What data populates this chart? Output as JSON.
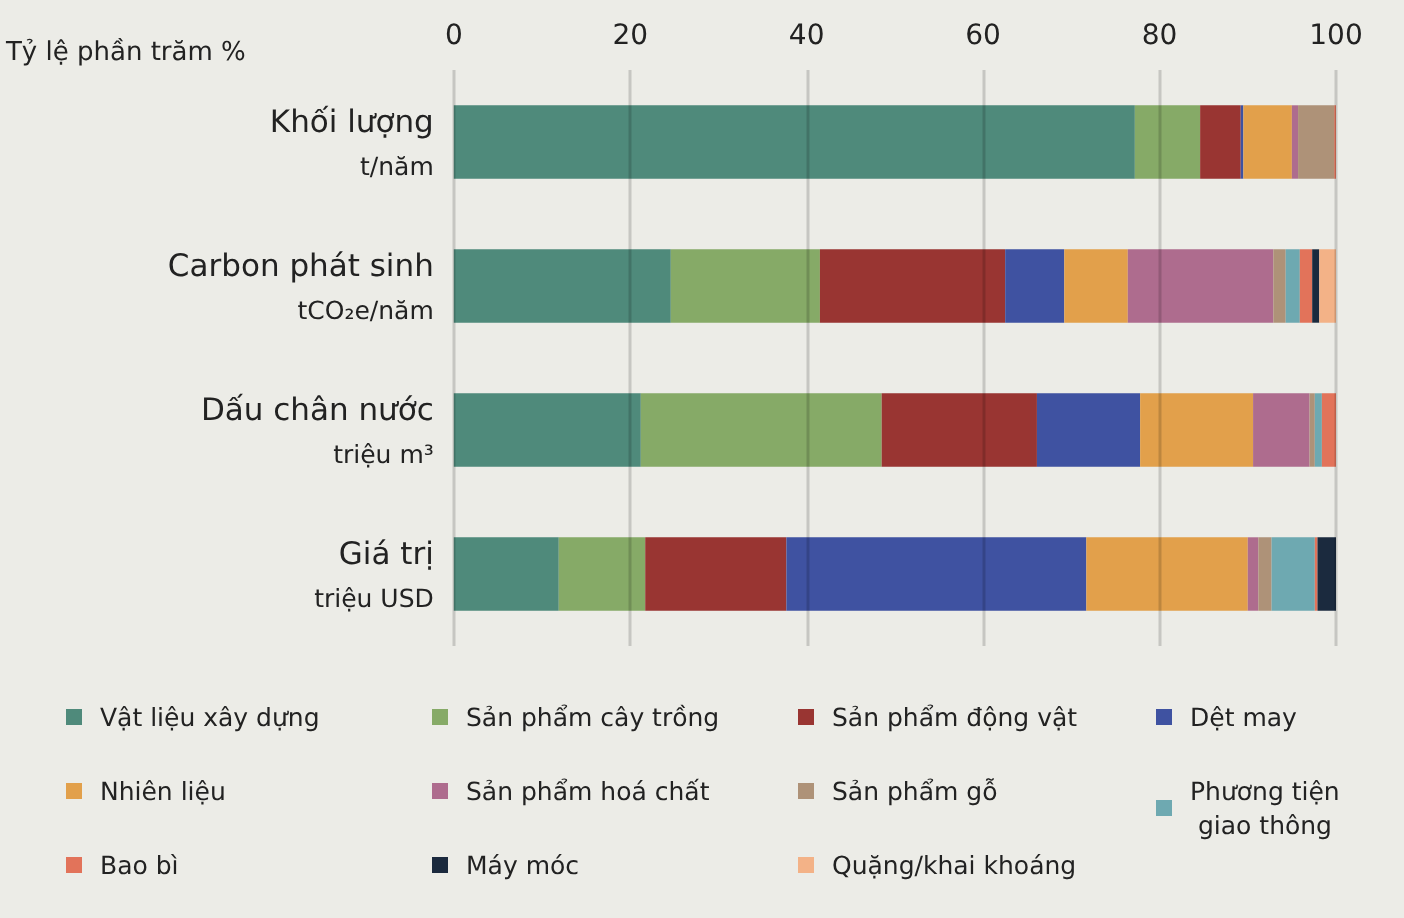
{
  "chart_data": {
    "type": "bar",
    "orientation": "horizontal",
    "stacked": true,
    "xlabel": "Tỷ lệ phần trăm %",
    "categories": [
      "Khối lượng\nt/năm",
      "Carbon phát sinh\ntCO₂e/năm",
      "Dấu chân nước\ntriệu m³",
      "Giá trị\ntriệu USD"
    ],
    "series": [
      {
        "name": "Vật liệu xây dựng",
        "color": "#4f8a7b",
        "values": [
          77.2,
          24.6,
          21.2,
          11.9
        ]
      },
      {
        "name": "Sản phẩm cây trồng",
        "color": "#86aa67",
        "values": [
          7.4,
          16.9,
          27.3,
          9.8
        ]
      },
      {
        "name": "Sản phẩm động vật",
        "color": "#993532",
        "values": [
          4.6,
          21.0,
          17.6,
          16.0
        ]
      },
      {
        "name": "Dệt may",
        "color": "#3f52a1",
        "values": [
          0.3,
          6.7,
          11.7,
          34.0
        ]
      },
      {
        "name": "Nhiên liệu",
        "color": "#e2a04b",
        "values": [
          5.5,
          7.2,
          12.8,
          18.3
        ]
      },
      {
        "name": "Sản phẩm hoá chất",
        "color": "#ae6c8e",
        "values": [
          0.7,
          16.5,
          6.4,
          1.2
        ]
      },
      {
        "name": "Sản phẩm gỗ",
        "color": "#ae9278",
        "values": [
          4.1,
          1.4,
          0.6,
          1.5
        ]
      },
      {
        "name": "Phương tiện giao thông",
        "color": "#6ea9b1",
        "values": [
          null,
          1.6,
          0.8,
          4.9
        ]
      },
      {
        "name": "Bao bì",
        "color": "#e2735a",
        "values": [
          0.2,
          1.4,
          1.6,
          0.3
        ]
      },
      {
        "name": "Máy móc",
        "color": "#1b2a3e",
        "values": [
          null,
          0.8,
          null,
          2.1
        ]
      },
      {
        "name": "Quặng/khai khoáng",
        "color": "#f3b287",
        "values": [
          null,
          1.9,
          null,
          null
        ]
      }
    ],
    "xlim": [
      0,
      100
    ],
    "xticks": [
      0,
      20,
      40,
      60,
      80,
      100
    ],
    "grid": "x",
    "legend": "bottom"
  }
}
